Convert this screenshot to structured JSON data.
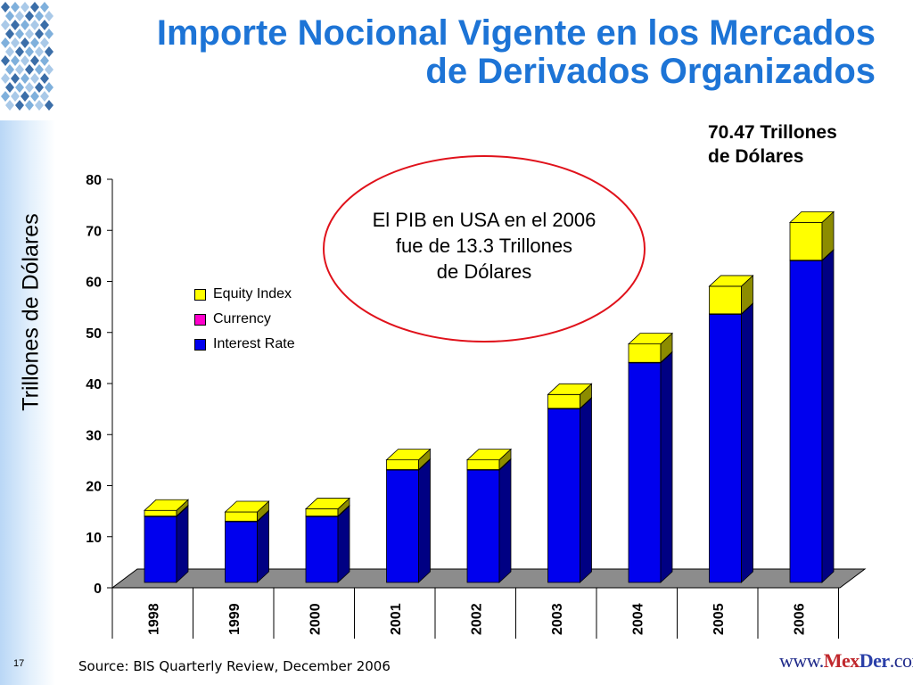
{
  "slide": {
    "title_line1": "Importe Nocional Vigente en los Mercados",
    "title_line2": "de Derivados Organizados",
    "callout_line1": "70.47 Trillones",
    "callout_line2": "de Dólares",
    "annotation_line1": "El PIB en USA en el 2006",
    "annotation_line2": "fue de 13.3 Trillones",
    "annotation_line3": "de Dólares",
    "source": "Source: BIS Quarterly Review, December 2006",
    "slide_number": "17",
    "brand_prefix": "www.",
    "brand_mex": "Mex",
    "brand_der": "Der",
    "brand_suffix": ".com"
  },
  "chart_data": {
    "type": "bar",
    "stacked": true,
    "three_d": true,
    "title": "",
    "xlabel": "",
    "ylabel": "Trillones de Dólares",
    "ylim": [
      0,
      80
    ],
    "yticks": [
      0,
      10,
      20,
      30,
      40,
      50,
      60,
      70,
      80
    ],
    "categories": [
      "1998",
      "1999",
      "2000",
      "2001",
      "2002",
      "2003",
      "2004",
      "2005",
      "2006"
    ],
    "series": [
      {
        "name": "Interest Rate",
        "color": "#0000ee",
        "values": [
          12.9,
          11.9,
          12.9,
          22.0,
          22.0,
          34.0,
          43.0,
          52.5,
          63.0
        ]
      },
      {
        "name": "Currency",
        "color": "#ff00cc",
        "values": [
          0.1,
          0.1,
          0.1,
          0.1,
          0.1,
          0.1,
          0.1,
          0.1,
          0.1
        ]
      },
      {
        "name": "Equity Index",
        "color": "#ffff00",
        "values": [
          1.1,
          1.8,
          1.4,
          1.9,
          1.9,
          2.7,
          3.6,
          5.4,
          7.4
        ]
      }
    ],
    "legend_position": "left-center",
    "grid": false
  }
}
